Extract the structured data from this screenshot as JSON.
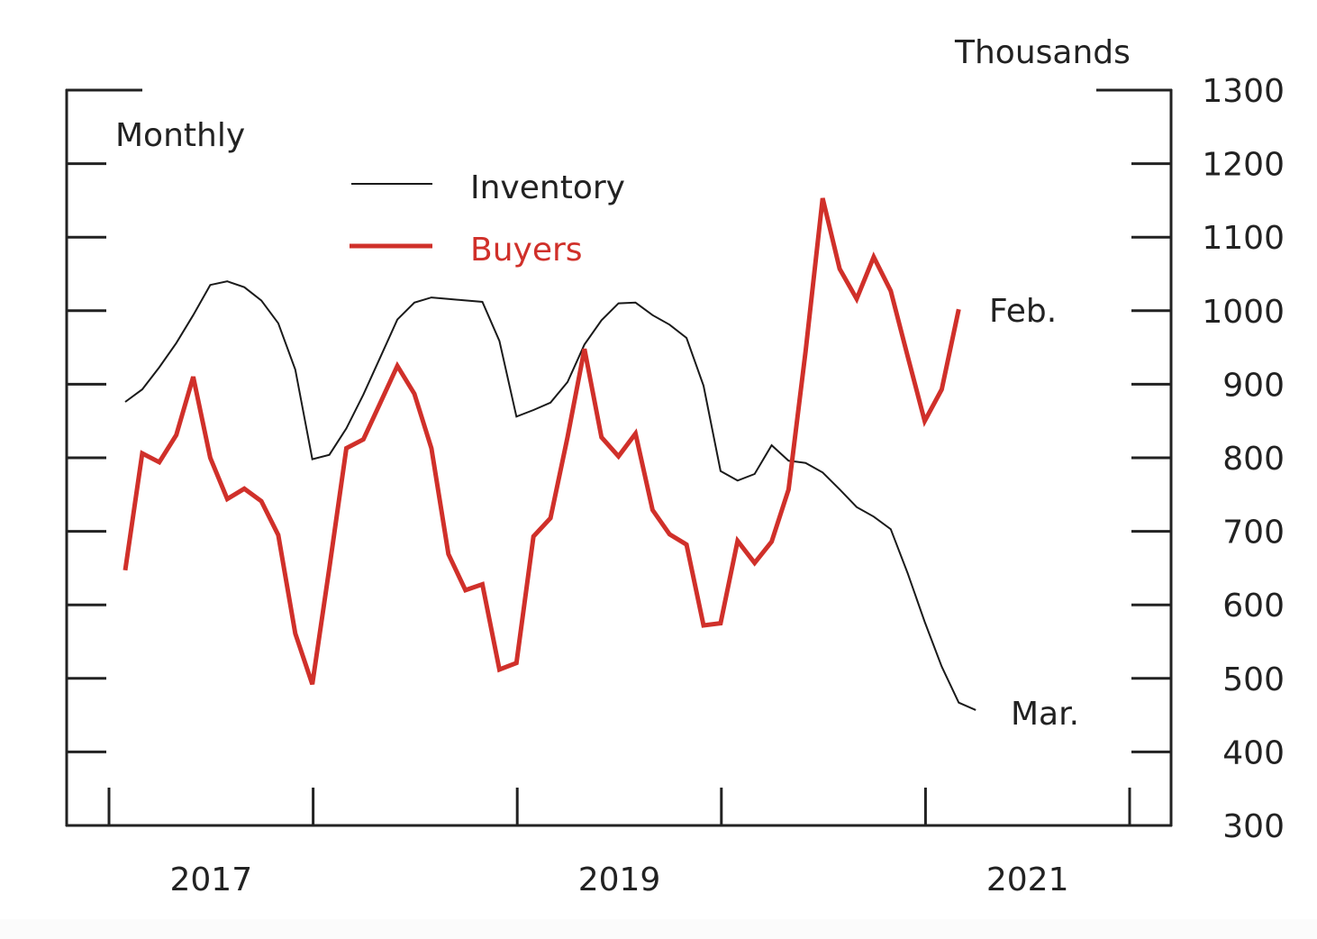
{
  "chart_data": {
    "type": "line",
    "title": "",
    "frequency_note": "Monthly",
    "unit_note": "Thousands",
    "xlabel": "",
    "ylabel": "Thousands",
    "ylim": [
      300,
      1300
    ],
    "yticks": [
      300,
      400,
      500,
      600,
      700,
      800,
      900,
      1000,
      1100,
      1200,
      1300
    ],
    "ytick_labels": [
      "300",
      "400",
      "500",
      "600",
      "700",
      "800",
      "900",
      "1000",
      "1100",
      "1200",
      "1300"
    ],
    "y_axis_side": "right",
    "x_start": "2017-01",
    "x_year_boundaries": [
      2017,
      2018,
      2019,
      2020,
      2021,
      2022
    ],
    "xtick_labels": [
      {
        "label": "2017",
        "year": 2017
      },
      {
        "label": "2019",
        "year": 2019
      },
      {
        "label": "2021",
        "year": 2021
      }
    ],
    "grid": false,
    "legend": {
      "placement": "top-left",
      "entries": [
        "Inventory",
        "Buyers"
      ]
    },
    "annotations": [
      {
        "text": "Feb.",
        "series": "Buyers"
      },
      {
        "text": "Mar.",
        "series": "Inventory"
      }
    ],
    "series": [
      {
        "name": "Inventory",
        "color": "#1a1a1a",
        "start": "2017-01",
        "values": [
          876,
          893,
          923,
          956,
          994,
          1035,
          1040,
          1032,
          1014,
          983,
          920,
          798,
          804,
          840,
          886,
          937,
          988,
          1011,
          1018,
          1016,
          1014,
          1012,
          959,
          856,
          865,
          875,
          903,
          954,
          987,
          1010,
          1011,
          994,
          981,
          963,
          898,
          782,
          769,
          778,
          817,
          796,
          793,
          780,
          757,
          733,
          720,
          703,
          643,
          577,
          516,
          467,
          457
        ]
      },
      {
        "name": "Buyers",
        "color": "#d0302a",
        "start": "2017-01",
        "values": [
          647,
          806,
          794,
          831,
          910,
          800,
          744,
          758,
          741,
          695,
          561,
          492,
          650,
          813,
          825,
          875,
          925,
          887,
          813,
          669,
          620,
          628,
          512,
          521,
          693,
          718,
          828,
          948,
          828,
          802,
          833,
          729,
          696,
          682,
          572,
          575,
          687,
          657,
          686,
          757,
          945,
          1153,
          1057,
          1016,
          1073,
          1027,
          938,
          850,
          893,
          1002
        ]
      }
    ]
  }
}
